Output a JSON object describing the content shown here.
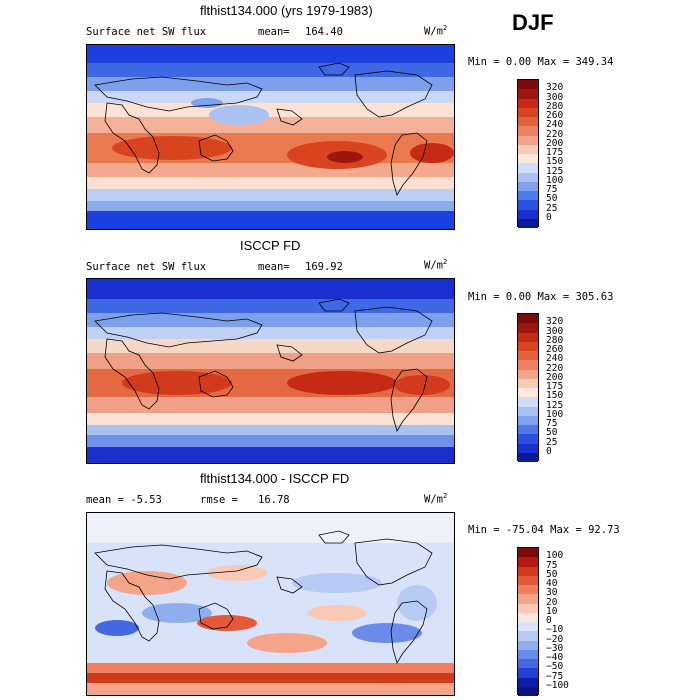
{
  "season": "DJF",
  "panels": [
    {
      "title": "flthist134.000 (yrs 1979-1983)",
      "left_label": "Surface net SW flux",
      "mean_label": "mean=",
      "mean_value": "164.40",
      "units": "W/m",
      "units_exp": "2",
      "minmax": "Min =    0.00 Max = 349.34",
      "colorbar_labels": [
        "320",
        "300",
        "280",
        "260",
        "240",
        "220",
        "200",
        "175",
        "150",
        "125",
        "100",
        "75",
        "50",
        "25",
        "0"
      ]
    },
    {
      "title": "ISCCP FD",
      "left_label": "Surface net SW flux",
      "mean_label": "mean=",
      "mean_value": "169.92",
      "units": "W/m",
      "units_exp": "2",
      "minmax": "Min =    0.00 Max = 305.63",
      "colorbar_labels": [
        "320",
        "300",
        "280",
        "260",
        "240",
        "220",
        "200",
        "175",
        "150",
        "125",
        "100",
        "75",
        "50",
        "25",
        "0"
      ]
    },
    {
      "title": "flthist134.000 - ISCCP FD",
      "left_label": "mean =   -5.53",
      "mean_label": "rmse =",
      "mean_value": "16.78",
      "units": "W/m",
      "units_exp": "2",
      "minmax": "Min = -75.04 Max =  92.73",
      "colorbar_labels": [
        "100",
        "75",
        "50",
        "40",
        "30",
        "20",
        "10",
        "0",
        "−10",
        "−20",
        "−30",
        "−40",
        "−50",
        "−75",
        "−100"
      ]
    }
  ],
  "colors": {
    "abs_scale": [
      "#7a0c0c",
      "#a01510",
      "#c52a14",
      "#d94420",
      "#e3613a",
      "#ec8060",
      "#f2a58a",
      "#f7cbb6",
      "#fbe8dc",
      "#cfdcf6",
      "#aac2f1",
      "#80a2ec",
      "#4f7ae6",
      "#2a50e0",
      "#1a2fd0",
      "#0a1a9a"
    ],
    "diff_scale": [
      "#7a0c0c",
      "#b01a10",
      "#d23a1e",
      "#e45a38",
      "#ee8060",
      "#f4a488",
      "#f9c9b6",
      "#fbe6dc",
      "#d8e2f8",
      "#b7caf3",
      "#90aeee",
      "#6a8ce8",
      "#4468e0",
      "#2240d2",
      "#0e1ea8",
      "#0a1480"
    ]
  }
}
